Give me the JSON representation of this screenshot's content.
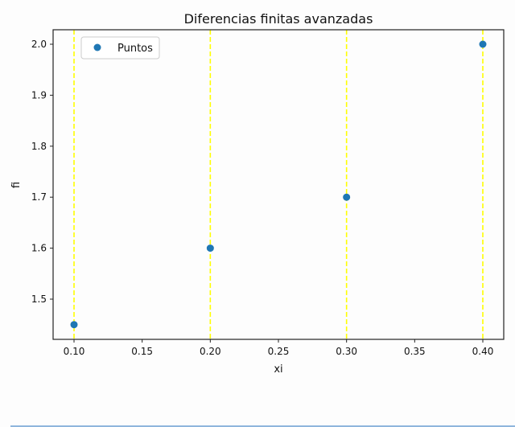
{
  "chart_data": {
    "type": "scatter",
    "title": "Diferencias finitas avanzadas",
    "xlabel": "xi",
    "ylabel": "fi",
    "x": [
      0.1,
      0.2,
      0.3,
      0.4
    ],
    "series": [
      {
        "name": "Puntos",
        "color": "#1f77b4",
        "x": [
          0.1,
          0.2,
          0.3,
          0.4
        ],
        "values": [
          1.45,
          1.6,
          1.7,
          2.0
        ]
      }
    ],
    "vlines": {
      "x": [
        0.1,
        0.2,
        0.3,
        0.4
      ],
      "color": "#ffff00",
      "style": "dashed"
    },
    "xticks": [
      "0.10",
      "0.15",
      "0.20",
      "0.25",
      "0.30",
      "0.35",
      "0.40"
    ],
    "yticks": [
      "1.5",
      "1.6",
      "1.7",
      "1.8",
      "1.9",
      "2.0"
    ],
    "xlim": [
      0.085,
      0.415
    ],
    "ylim": [
      1.4225,
      2.0275
    ],
    "grid": false,
    "legend_position": "upper left"
  }
}
